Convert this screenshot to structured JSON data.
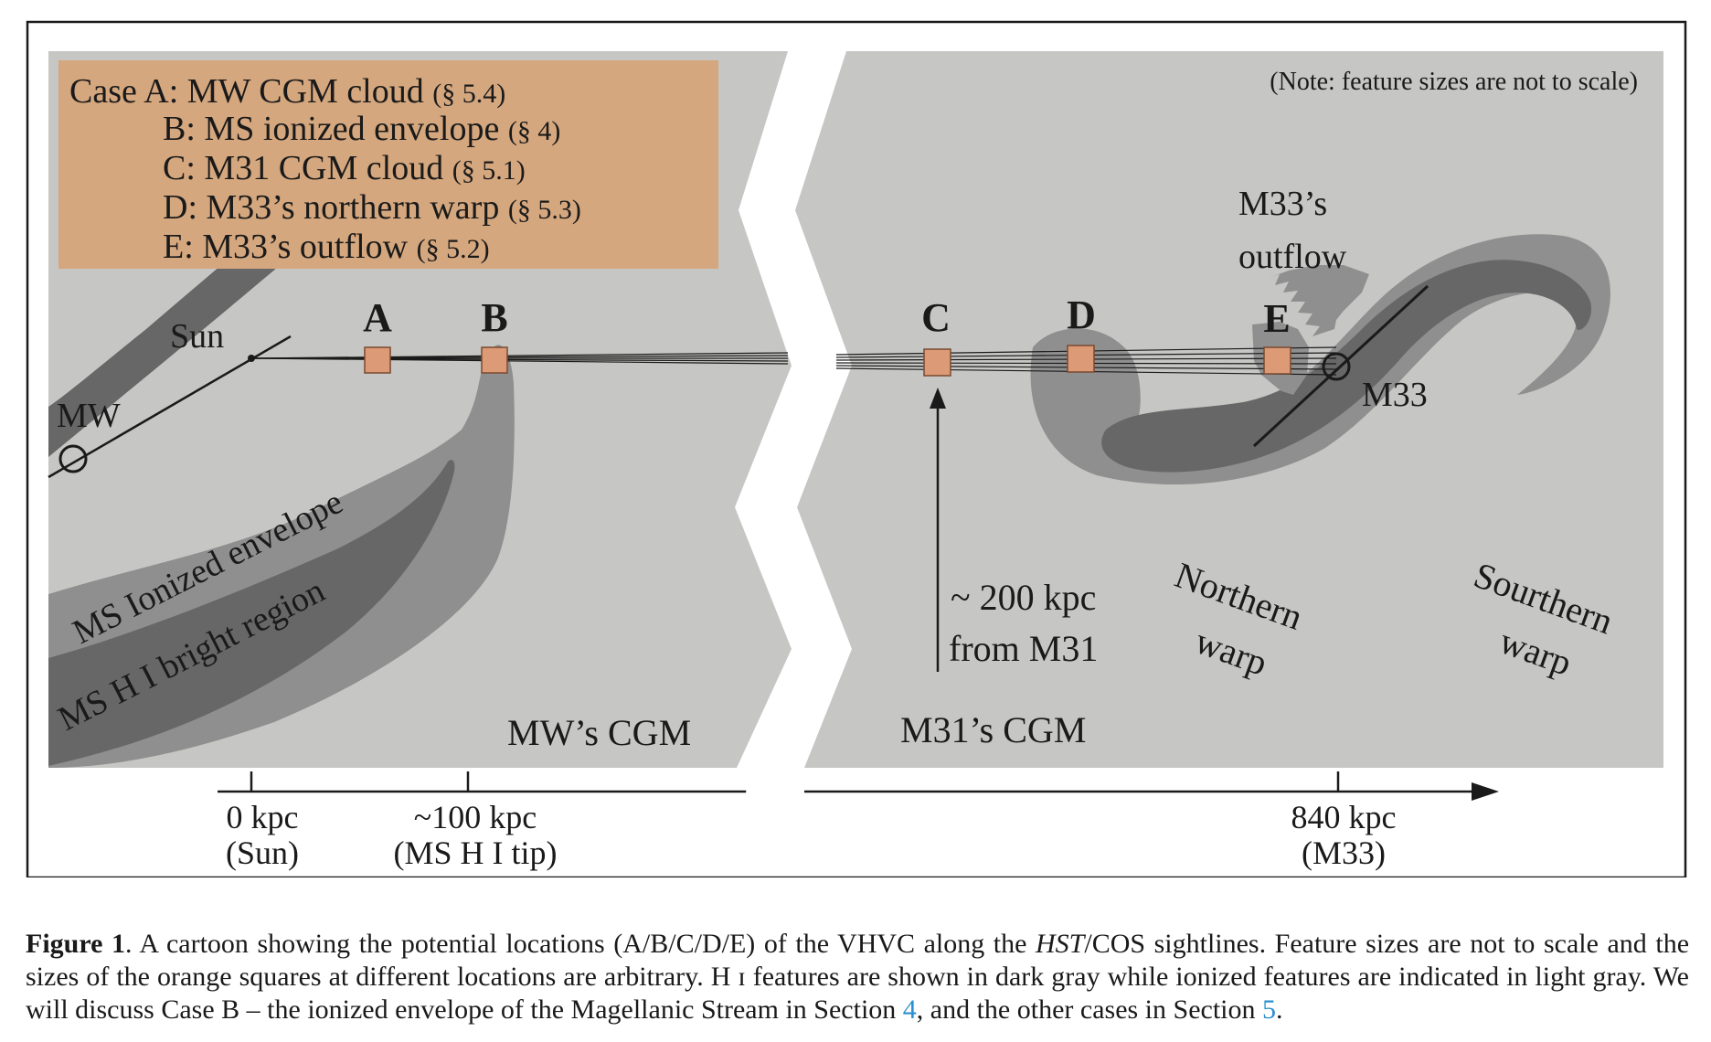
{
  "legend": {
    "line_a": "Case A: MW CGM cloud",
    "line_a_ref": "(§ 5.4)",
    "line_b": "B: MS ionized envelope",
    "line_b_ref": "(§ 4)",
    "line_c": "C: M31 CGM cloud",
    "line_c_ref": "(§ 5.1)",
    "line_d": "D: M33’s northern warp",
    "line_d_ref": "(§ 5.3)",
    "line_e": "E: M33’s outflow",
    "line_e_ref": "(§ 5.2)"
  },
  "note": "(Note: feature sizes are not to scale)",
  "labels": {
    "sun": "Sun",
    "mw": "MW",
    "case_a": "A",
    "case_b": "B",
    "case_c": "C",
    "case_d": "D",
    "case_e": "E",
    "m33": "M33",
    "m33_outflow_1": "M33’s",
    "m33_outflow_2": "outflow",
    "ms_envelope": "MS Ionized envelope",
    "ms_bright": "MS H I bright region",
    "mw_cgm": "MW’s  CGM",
    "m31_cgm": "M31’s  CGM",
    "distance_1": "~ 200 kpc",
    "distance_2": "from M31",
    "northern_1": "Northern",
    "northern_2": "warp",
    "southern_1": "Sourthern",
    "southern_2": "warp"
  },
  "axis": {
    "tick0_1": "0 kpc",
    "tick0_2": "(Sun)",
    "tick1_1": "~100 kpc",
    "tick1_2": "(MS H I tip)",
    "tick2_1": "840 kpc",
    "tick2_2": "(M33)"
  },
  "caption": {
    "label": "Figure 1",
    "part1": ". A cartoon showing the potential locations (A/B/C/D/E) of the VHVC along the ",
    "hst": "HST",
    "part2": "/COS sightlines. Feature sizes are not to scale and the sizes of the orange squares at different locations are arbitrary. H ɪ features are shown in dark gray while ionized features are indicated in light gray. We will discuss Case B – the ionized envelope of the Magellanic Stream in Section ",
    "ref1": "4",
    "part3": ", and the other cases in Section ",
    "ref2": "5",
    "part4": "."
  },
  "colors": {
    "background_panel": "#c6c6c4",
    "ionized_gray": "#8f8f8f",
    "hi_dark_gray": "#676767",
    "legend_box": "#d5a77e",
    "orange_square": "#dc9b76"
  }
}
